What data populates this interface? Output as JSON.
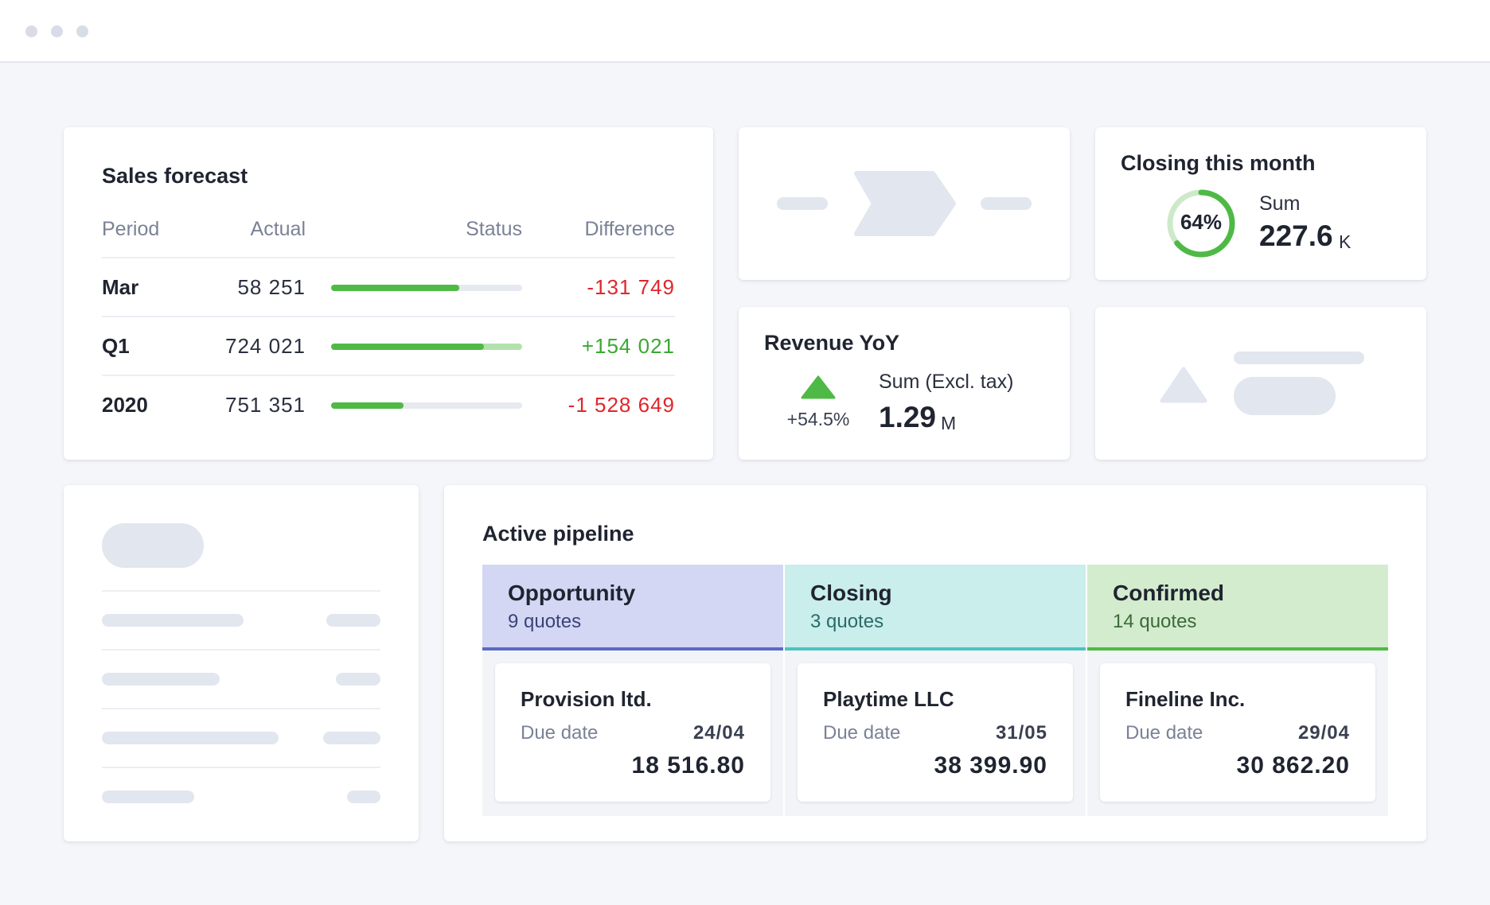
{
  "sales_forecast": {
    "title": "Sales forecast",
    "columns": {
      "period": "Period",
      "actual": "Actual",
      "status": "Status",
      "difference": "Difference"
    },
    "rows": [
      {
        "period": "Mar",
        "actual": "58 251",
        "progress": 0.67,
        "difference": "-131 749",
        "trend": "negative"
      },
      {
        "period": "Q1",
        "actual": "724 021",
        "progress": 0.8,
        "difference": "+154 021",
        "trend": "positive"
      },
      {
        "period": "2020",
        "actual": "751 351",
        "progress": 0.38,
        "difference": "-1 528 649",
        "trend": "negative"
      }
    ]
  },
  "closing_month": {
    "title": "Closing this month",
    "percent_label": "64%",
    "percent_value": 0.64,
    "sum_label": "Sum",
    "sum_value": "227.6",
    "sum_unit": "K"
  },
  "revenue_yoy": {
    "title": "Revenue YoY",
    "change": "+54.5%",
    "sum_label": "Sum (Excl. tax)",
    "sum_value": "1.29",
    "sum_unit": "M"
  },
  "pipeline": {
    "title": "Active pipeline",
    "stages": [
      {
        "name": "Opportunity",
        "count": "9 quotes",
        "header_bg": "#d3d7f4",
        "accent": "#5a6ac2",
        "count_color": "#3b4377",
        "quote": {
          "company": "Provision ltd.",
          "due_label": "Due date",
          "due_date": "24/04",
          "amount": "18 516.80"
        }
      },
      {
        "name": "Closing",
        "count": "3 quotes",
        "header_bg": "#c9eeec",
        "accent": "#4cc3c0",
        "count_color": "#2a6b69",
        "quote": {
          "company": "Playtime LLC",
          "due_label": "Due date",
          "due_date": "31/05",
          "amount": "38 399.90"
        }
      },
      {
        "name": "Confirmed",
        "count": "14 quotes",
        "header_bg": "#d3ecce",
        "accent": "#4fb946",
        "count_color": "#3d6a38",
        "quote": {
          "company": "Fineline Inc.",
          "due_label": "Due date",
          "due_date": "29/04",
          "amount": "30 862.20"
        }
      }
    ]
  },
  "colors": {
    "positive": "#3aa832",
    "negative": "#e0262b",
    "bar_fill": "#4fb946",
    "bar_track": "#e6e9ef",
    "bar_track_q1": "#b3e1ad",
    "ring": "#4fb946",
    "ring_track": "#cde9c9"
  }
}
